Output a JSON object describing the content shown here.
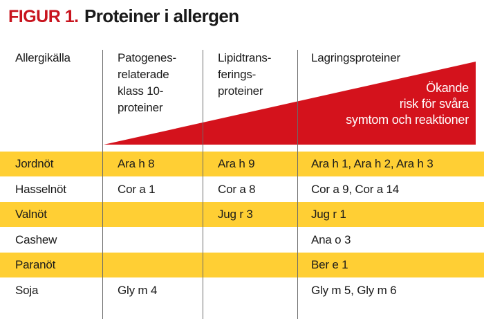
{
  "figure": {
    "label": "FIGUR 1.",
    "title": "Proteiner i allergen"
  },
  "columns": {
    "source": [
      "Allergikälla"
    ],
    "pr10": [
      "Patogenes-",
      "relaterade",
      "klass 10-",
      "proteiner"
    ],
    "ltp": [
      "Lipidtrans-",
      "ferings-",
      "proteiner"
    ],
    "storage": [
      "Lagringsproteiner"
    ]
  },
  "risk": {
    "lines": [
      "Ökande",
      "risk för svåra",
      "symtom och reaktioner"
    ],
    "color": "#d4121c"
  },
  "colors": {
    "highlight_row": "#ffcf34",
    "accent": "#c8141e"
  },
  "rows": [
    {
      "source": "Jordnöt",
      "pr10": "Ara h 8",
      "ltp": "Ara h 9",
      "storage": "Ara h 1, Ara h 2, Ara h 3",
      "highlighted": true
    },
    {
      "source": "Hasselnöt",
      "pr10": "Cor a 1",
      "ltp": "Cor a 8",
      "storage": "Cor a 9, Cor a 14",
      "highlighted": false
    },
    {
      "source": "Valnöt",
      "pr10": "",
      "ltp": "Jug r 3",
      "storage": "Jug r 1",
      "highlighted": true
    },
    {
      "source": "Cashew",
      "pr10": "",
      "ltp": "",
      "storage": "Ana o 3",
      "highlighted": false
    },
    {
      "source": "Paranöt",
      "pr10": "",
      "ltp": "",
      "storage": "Ber e 1",
      "highlighted": true
    },
    {
      "source": "Soja",
      "pr10": "Gly m 4",
      "ltp": "",
      "storage": "Gly m 5, Gly m 6",
      "highlighted": false
    }
  ]
}
